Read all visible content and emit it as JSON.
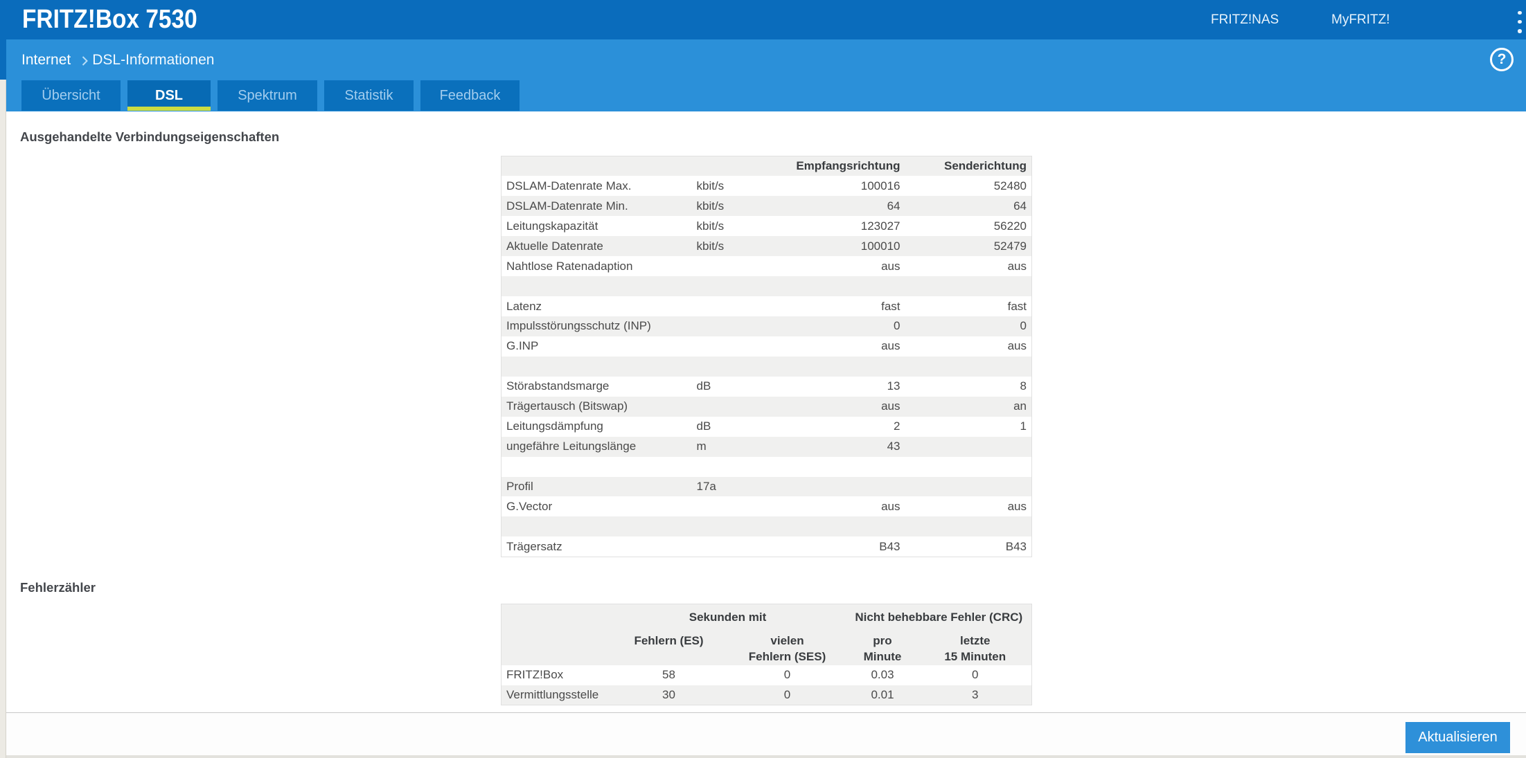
{
  "app": {
    "title": "FRITZ!Box 7530"
  },
  "header_menu": {
    "fritznas": "FRITZ!NAS",
    "myfritz": "MyFRITZ!"
  },
  "breadcrumb": {
    "section": "Internet",
    "separator": "›",
    "page": "DSL-Informationen"
  },
  "help_icon": {
    "glyph": "?"
  },
  "tabs": [
    {
      "label": "Übersicht",
      "active": false
    },
    {
      "label": "DSL",
      "active": true
    },
    {
      "label": "Spektrum",
      "active": false
    },
    {
      "label": "Statistik",
      "active": false
    },
    {
      "label": "Feedback",
      "active": false
    }
  ],
  "section1": {
    "title": "Ausgehandelte Verbindungseigenschaften"
  },
  "section2": {
    "title": "Fehlerzähler"
  },
  "table1": {
    "rows": [
      [
        "",
        "",
        "Empfangsrichtung",
        "Senderichtung"
      ],
      [
        "DSLAM-Datenrate Max.",
        "kbit/s",
        "100016",
        "52480"
      ],
      [
        "DSLAM-Datenrate Min.",
        "kbit/s",
        "64",
        "64"
      ],
      [
        "Leitungskapazität",
        "kbit/s",
        "123027",
        "56220"
      ],
      [
        "Aktuelle Datenrate",
        "kbit/s",
        "100010",
        "52479"
      ],
      [
        "Nahtlose Ratenadaption",
        "",
        "aus",
        "aus"
      ],
      [
        "",
        "",
        "",
        ""
      ],
      [
        "Latenz",
        "",
        "fast",
        "fast"
      ],
      [
        "Impulsstörungsschutz (INP)",
        "",
        "0",
        "0"
      ],
      [
        "G.INP",
        "",
        "aus",
        "aus"
      ],
      [
        "",
        "",
        "",
        ""
      ],
      [
        "Störabstandsmarge",
        "dB",
        "13",
        "8"
      ],
      [
        "Trägertausch (Bitswap)",
        "",
        "aus",
        "an"
      ],
      [
        "Leitungsdämpfung",
        "dB",
        "2",
        "1"
      ],
      [
        "ungefähre Leitungslänge",
        "m",
        "43",
        ""
      ],
      [
        "",
        "",
        "",
        ""
      ],
      [
        "Profil",
        "17a",
        "",
        ""
      ],
      [
        "G.Vector",
        "",
        "aus",
        "aus"
      ],
      [
        "",
        "",
        "",
        ""
      ],
      [
        "Trägersatz",
        "",
        "B43",
        "B43"
      ]
    ]
  },
  "table2": {
    "group_headers": {
      "seconds": "Sekunden mit",
      "crc": "Nicht behebbare Fehler (CRC)"
    },
    "col_headers": {
      "es": "Fehlern (ES)",
      "ses": "vielen\nFehlern (SES)",
      "per_minute": "pro\nMinute",
      "last15": "letzte\n15 Minuten"
    },
    "rows": [
      [
        "FRITZ!Box",
        "58",
        "0",
        "0.03",
        "0"
      ],
      [
        "Vermittlungsstelle",
        "30",
        "0",
        "0.01",
        "3"
      ]
    ]
  },
  "footer": {
    "refresh_label": "Aktualisieren"
  },
  "colors": {
    "header_blue": "#0a6cbc",
    "band_blue": "#2b90d9",
    "tab_blue": "#0a70bc",
    "active_tab_underline": "#ccdc42",
    "button_blue": "#2e90d9",
    "row_stripe": "#f0f0ef"
  }
}
